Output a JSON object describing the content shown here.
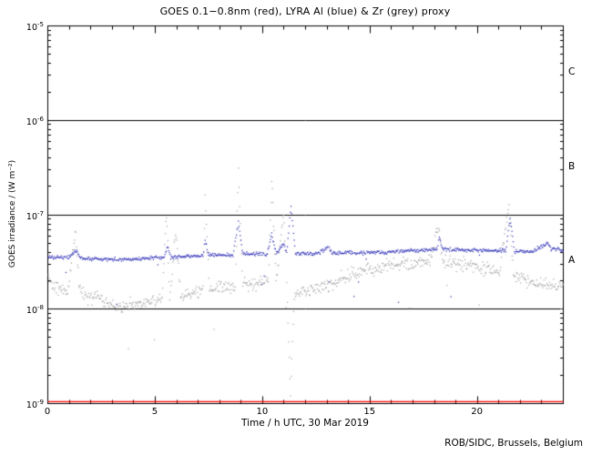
{
  "footer": {
    "credit": "ROB/SIDC, Brussels, Belgium"
  },
  "chart_data": {
    "type": "scatter",
    "title": "GOES 0.1−0.8nm (red), LYRA Al (blue) & Zr (grey) proxy",
    "xlabel": "Time / h UTC, 30 Mar 2019",
    "ylabel": "GOES irradiance / (W m⁻²)",
    "x_range": [
      0,
      24
    ],
    "x_major_ticks": [
      0,
      5,
      10,
      15,
      20
    ],
    "x_minor_step": 1,
    "y_log_range": [
      -9,
      -5
    ],
    "y_tick_exponents": [
      -5,
      -6,
      -7,
      -8,
      -9
    ],
    "grid": "off",
    "legend": "in-title",
    "hlines": [
      1e-06,
      1e-07,
      1e-08
    ],
    "flare_class_labels": [
      {
        "label": "C",
        "y": 3.16e-06
      },
      {
        "label": "B",
        "y": 3.16e-07
      },
      {
        "label": "A",
        "y": 3.16e-08
      }
    ],
    "series": [
      {
        "name": "GOES 0.1-0.8nm",
        "color": "#ff0000",
        "style": "line",
        "jitter": 0,
        "points": [
          [
            0,
            1.05e-09
          ],
          [
            24,
            1.05e-09
          ]
        ]
      },
      {
        "name": "LYRA Zr proxy",
        "color": "#9e9e9e",
        "style": "dots",
        "jitter": 0.07,
        "points": [
          [
            0,
            2.2e-08
          ],
          [
            0.4,
            1.7e-08
          ],
          [
            0.9,
            1.5e-08
          ],
          [
            1.25,
            7e-08
          ],
          [
            1.45,
            1.6e-08
          ],
          [
            2,
            1.35e-08
          ],
          [
            2.7,
            1.2e-08
          ],
          [
            3.3,
            1.05e-08
          ],
          [
            4,
            1.1e-08
          ],
          [
            4.7,
            1.2e-08
          ],
          [
            5.3,
            1.3e-08
          ],
          [
            5.5,
            1.15e-07
          ],
          [
            5.65,
            1.35e-08
          ],
          [
            5.95,
            7e-08
          ],
          [
            6.15,
            1.4e-08
          ],
          [
            6.8,
            1.5e-08
          ],
          [
            7.2,
            1.6e-08
          ],
          [
            7.3,
            1.6e-07
          ],
          [
            7.5,
            1.6e-08
          ],
          [
            8.2,
            1.7e-08
          ],
          [
            8.7,
            1.8e-08
          ],
          [
            8.85,
            2.9e-07
          ],
          [
            9.05,
            1.85e-08
          ],
          [
            9.7,
            1.9e-08
          ],
          [
            10.25,
            2e-08
          ],
          [
            10.4,
            2.6e-07
          ],
          [
            10.6,
            1.95e-08
          ],
          [
            10.95,
            1.1e-07
          ],
          [
            11.1,
            1.8e-08
          ],
          [
            11.28,
            1.2e-09
          ],
          [
            11.45,
            1.55e-08
          ],
          [
            12,
            1.55e-08
          ],
          [
            12.7,
            1.7e-08
          ],
          [
            13.4,
            2e-08
          ],
          [
            14,
            2.3e-08
          ],
          [
            14.7,
            2.6e-08
          ],
          [
            15.4,
            2.8e-08
          ],
          [
            16.2,
            3e-08
          ],
          [
            17,
            3.1e-08
          ],
          [
            17.8,
            3.3e-08
          ],
          [
            18.15,
            8e-08
          ],
          [
            18.35,
            3.3e-08
          ],
          [
            19,
            3.1e-08
          ],
          [
            19.7,
            2.9e-08
          ],
          [
            20.4,
            2.7e-08
          ],
          [
            21,
            2.5e-08
          ],
          [
            21.45,
            1.3e-07
          ],
          [
            21.65,
            2.3e-08
          ],
          [
            22.2,
            2.1e-08
          ],
          [
            22.8,
            1.9e-08
          ],
          [
            23.4,
            1.8e-08
          ],
          [
            24,
            1.8e-08
          ]
        ]
      },
      {
        "name": "LYRA Al proxy",
        "color": "#2222b2",
        "style": "dots",
        "jitter": 0.02,
        "points": [
          [
            0,
            3.6e-08
          ],
          [
            1,
            3.6e-08
          ],
          [
            1.3,
            4.3e-08
          ],
          [
            1.5,
            3.5e-08
          ],
          [
            2.5,
            3.4e-08
          ],
          [
            3.5,
            3.4e-08
          ],
          [
            4.5,
            3.5e-08
          ],
          [
            5.4,
            3.6e-08
          ],
          [
            5.55,
            4.6e-08
          ],
          [
            5.7,
            3.6e-08
          ],
          [
            6.5,
            3.7e-08
          ],
          [
            7.2,
            3.7e-08
          ],
          [
            7.3,
            5.5e-08
          ],
          [
            7.45,
            3.8e-08
          ],
          [
            8.6,
            3.8e-08
          ],
          [
            8.85,
            8.5e-08
          ],
          [
            9.05,
            3.9e-08
          ],
          [
            10.2,
            3.9e-08
          ],
          [
            10.4,
            6.5e-08
          ],
          [
            10.6,
            3.9e-08
          ],
          [
            10.95,
            5e-08
          ],
          [
            11.1,
            4e-08
          ],
          [
            11.3,
            1.25e-07
          ],
          [
            11.5,
            3.9e-08
          ],
          [
            12.5,
            3.9e-08
          ],
          [
            13.05,
            4.6e-08
          ],
          [
            13.2,
            4e-08
          ],
          [
            14.5,
            4e-08
          ],
          [
            16,
            4.1e-08
          ],
          [
            17.5,
            4.3e-08
          ],
          [
            18.1,
            4.4e-08
          ],
          [
            18.2,
            6e-08
          ],
          [
            18.35,
            4.4e-08
          ],
          [
            19.5,
            4.3e-08
          ],
          [
            21.3,
            4.2e-08
          ],
          [
            21.5,
            9.5e-08
          ],
          [
            21.7,
            4.2e-08
          ],
          [
            22.5,
            4.1e-08
          ],
          [
            23.2,
            5e-08
          ],
          [
            23.4,
            4.4e-08
          ],
          [
            24,
            4.3e-08
          ]
        ]
      }
    ]
  }
}
